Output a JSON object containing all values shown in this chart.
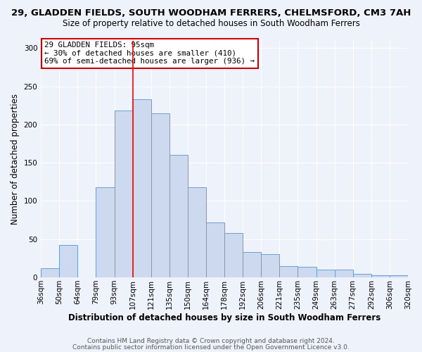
{
  "title1": "29, GLADDEN FIELDS, SOUTH WOODHAM FERRERS, CHELMSFORD, CM3 7AH",
  "title2": "Size of property relative to detached houses in South Woodham Ferrers",
  "xlabel": "Distribution of detached houses by size in South Woodham Ferrers",
  "ylabel": "Number of detached properties",
  "bin_labels": [
    "36sqm",
    "50sqm",
    "64sqm",
    "79sqm",
    "93sqm",
    "107sqm",
    "121sqm",
    "135sqm",
    "150sqm",
    "164sqm",
    "178sqm",
    "192sqm",
    "206sqm",
    "221sqm",
    "235sqm",
    "249sqm",
    "263sqm",
    "277sqm",
    "292sqm",
    "306sqm",
    "320sqm"
  ],
  "bar_heights": [
    12,
    42,
    0,
    118,
    218,
    233,
    215,
    160,
    118,
    72,
    58,
    33,
    30,
    15,
    14,
    10,
    10,
    5,
    3,
    3
  ],
  "bar_color": "#cdd9ee",
  "bar_edge_color": "#6a9fd4",
  "red_line_x": 5,
  "annotation_text": "29 GLADDEN FIELDS: 95sqm\n← 30% of detached houses are smaller (410)\n69% of semi-detached houses are larger (936) →",
  "annotation_box_color": "#ffffff",
  "annotation_box_edge_color": "#cc0000",
  "footnote1": "Contains HM Land Registry data © Crown copyright and database right 2024.",
  "footnote2": "Contains public sector information licensed under the Open Government Licence v3.0.",
  "ylim": [
    0,
    310
  ],
  "yticks": [
    0,
    50,
    100,
    150,
    200,
    250,
    300
  ],
  "title1_fontsize": 9.5,
  "title2_fontsize": 8.5,
  "xlabel_fontsize": 8.5,
  "ylabel_fontsize": 8.5,
  "background_color": "#eef2fb",
  "grid_color": "#ffffff",
  "tick_fontsize": 7.5,
  "footnote_fontsize": 6.5,
  "footnote_color": "#555555"
}
